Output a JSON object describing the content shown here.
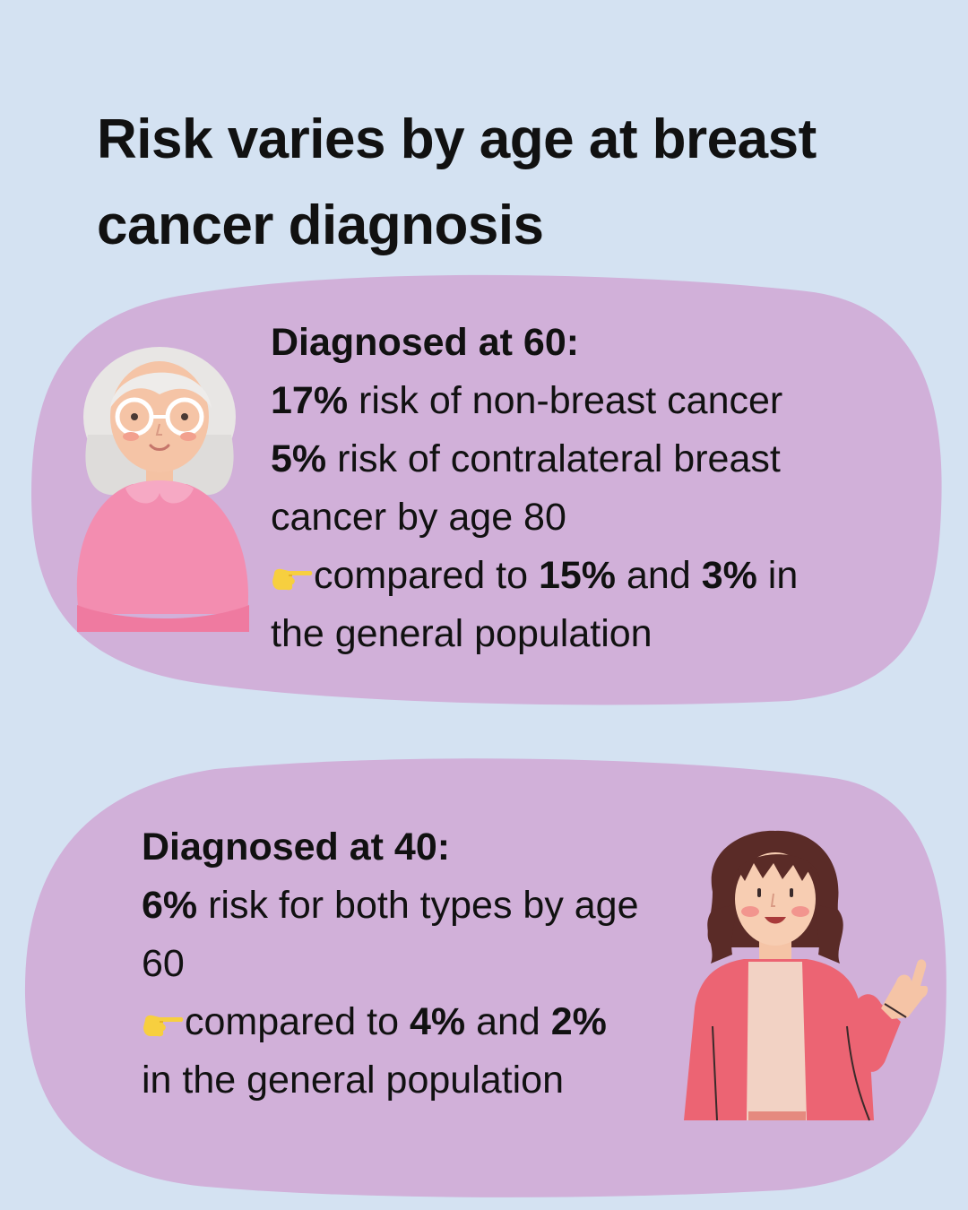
{
  "title": "Risk varies by age at breast cancer diagnosis",
  "colors": {
    "background": "#d4e2f2",
    "card": "#d1b0d9",
    "text": "#111111"
  },
  "card_60": {
    "heading": "Diagnosed at 60:",
    "stat1_value": "17%",
    "stat1_text": " risk of non-breast cancer",
    "stat2_value": "5%",
    "stat2_text": " risk of contralateral breast",
    "stat2_cont": "cancer by age 80",
    "compare_prefix": "compared to ",
    "compare_value1": "15%",
    "compare_mid": " and ",
    "compare_value2": "3%",
    "compare_suffix": " in",
    "compare_cont": "the general population",
    "pointer_icon": "pointing-hand-icon",
    "illustration": "older-woman-illustration"
  },
  "card_40": {
    "heading": "Diagnosed at 40:",
    "stat_value": "6%",
    "stat_text": " risk for both types by age",
    "stat_cont": "60",
    "compare_prefix": "compared to ",
    "compare_value1": "4%",
    "compare_mid": " and ",
    "compare_value2": "2%",
    "compare_cont": "in the general population",
    "pointer_icon": "pointing-hand-icon",
    "illustration": "young-woman-waving-illustration"
  }
}
